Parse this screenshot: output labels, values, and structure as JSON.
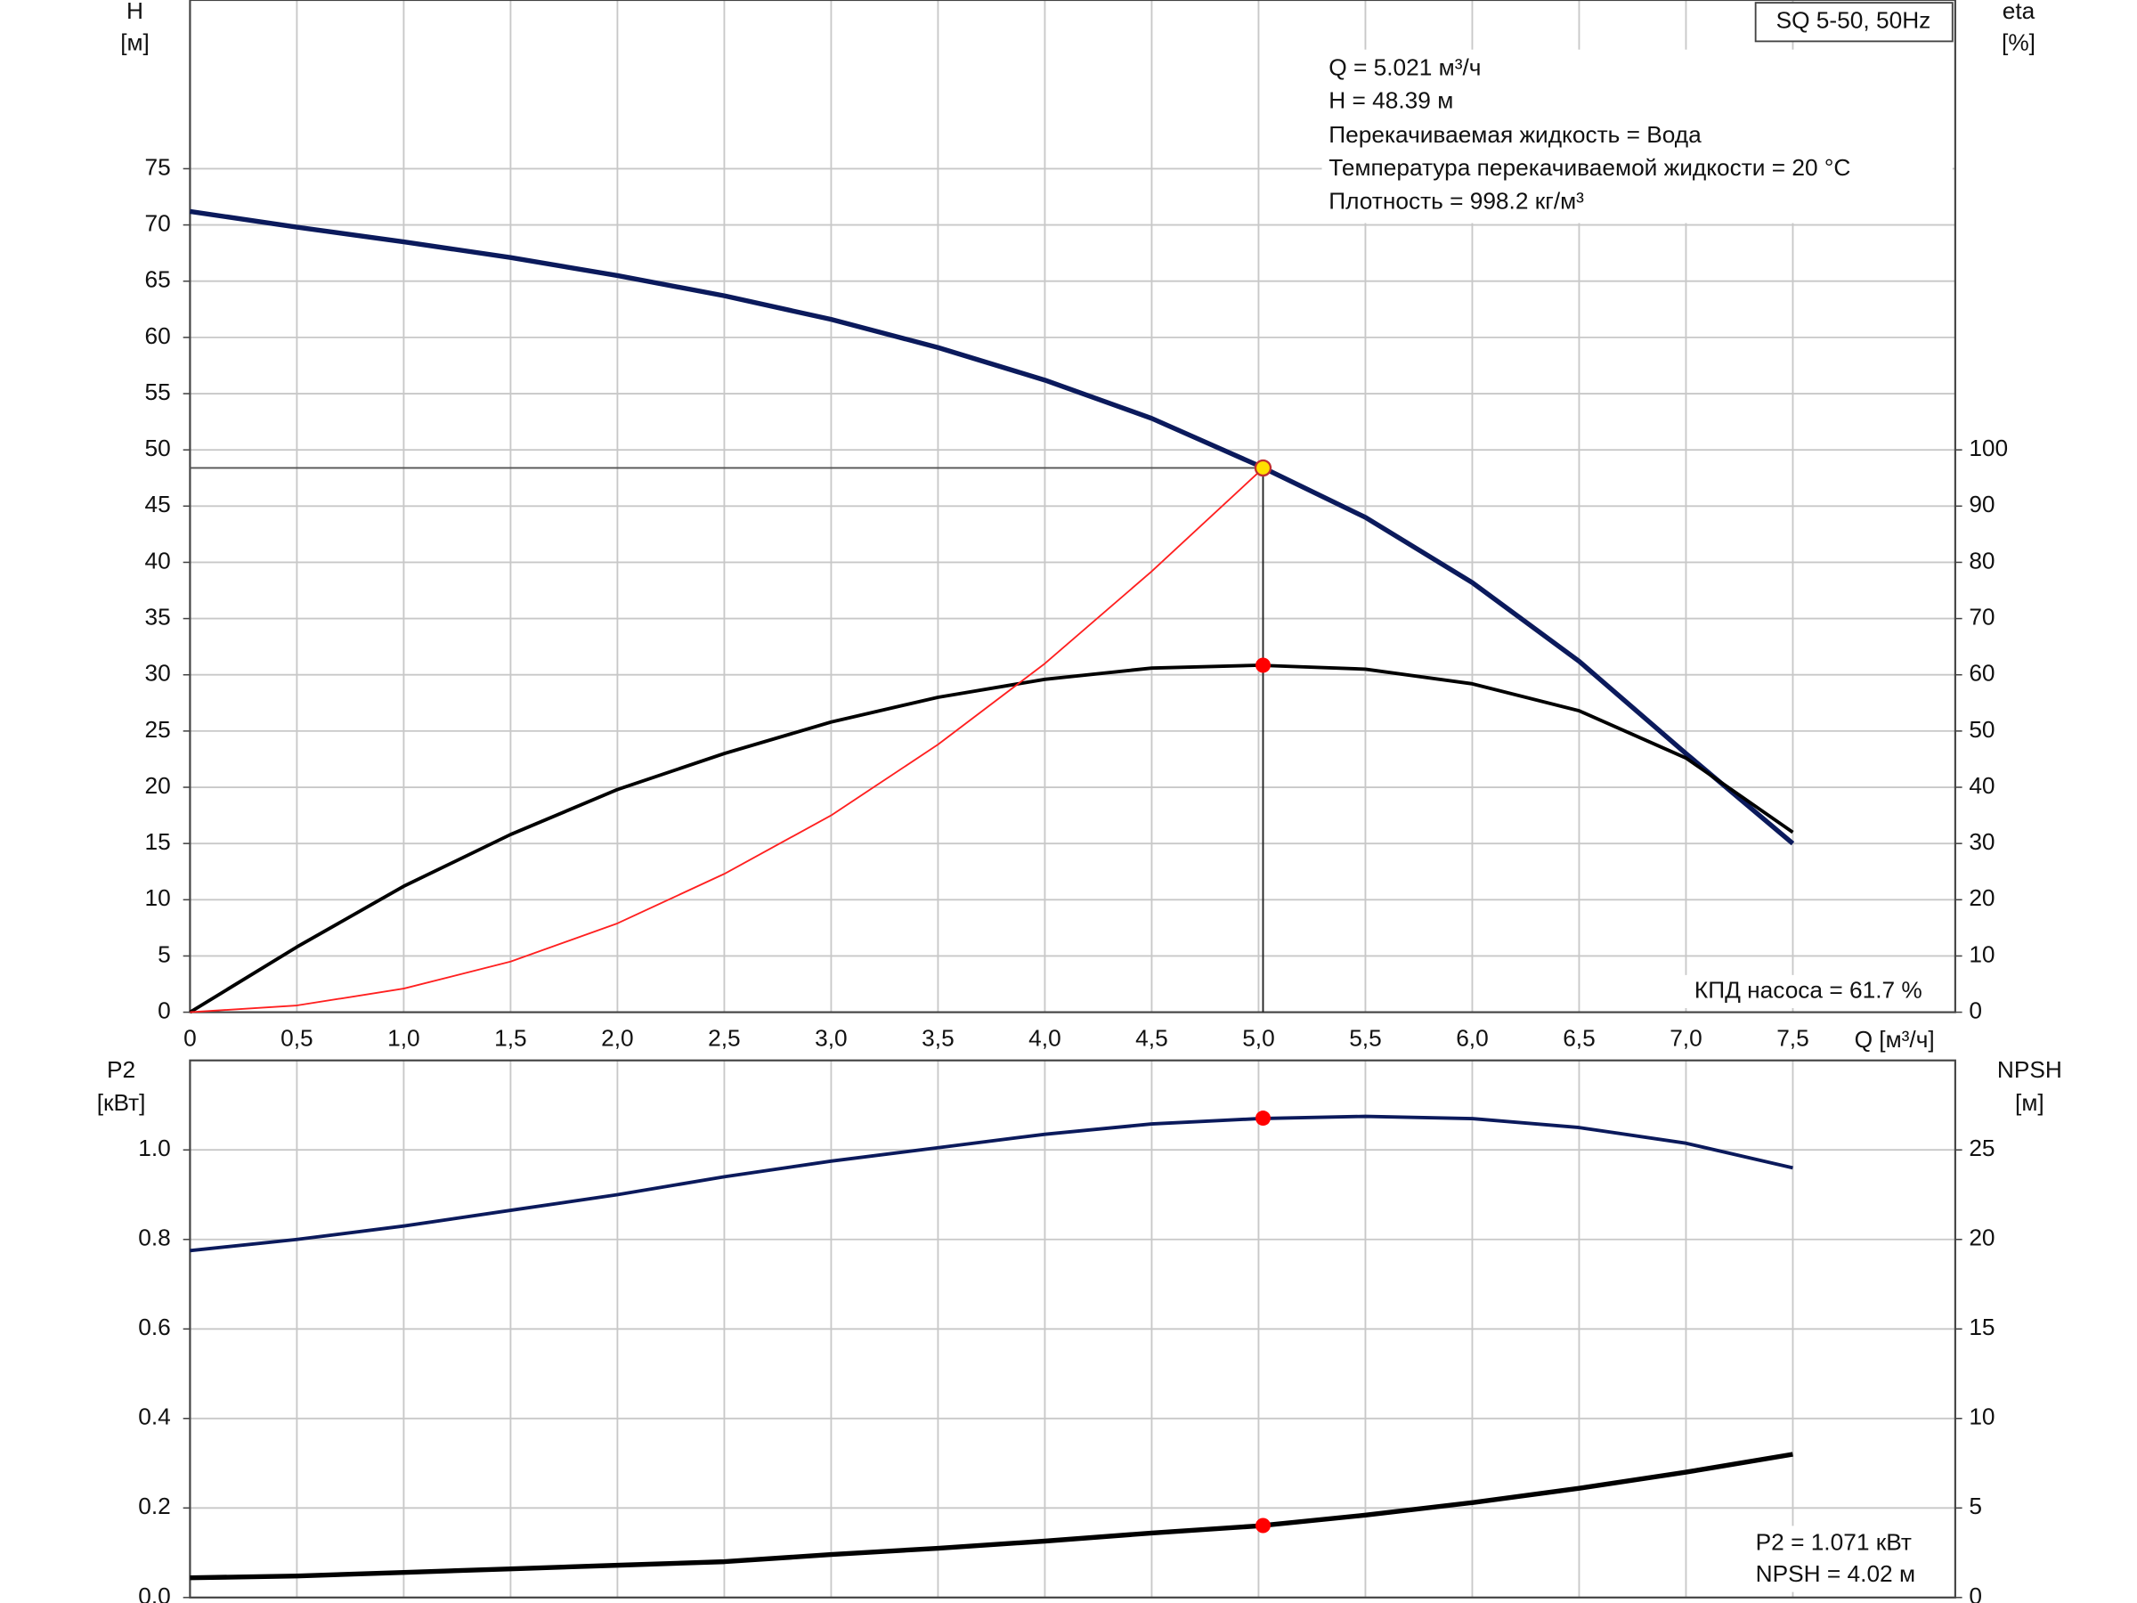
{
  "chart_data": [
    {
      "type": "line",
      "model": "SQ 5-50, 50Hz",
      "annotations": [
        "Q = 5.021 м³/ч",
        "H = 48.39 м",
        "Перекачиваемая жидкость = Вода",
        "Температура перекачиваемой жидкости = 20 °C",
        "Плотность = 998.2 кг/м³"
      ],
      "efficiency_label": "КПД насоса = 61.7 %",
      "ylabel": [
        "H",
        "[м]"
      ],
      "y2label": [
        "eta",
        "[%]"
      ],
      "xlabel": "Q [м³/ч]",
      "x": [
        0,
        0.5,
        1.0,
        1.5,
        2.0,
        2.5,
        3.0,
        3.5,
        4.0,
        4.5,
        5.0,
        5.5,
        6.0,
        6.5,
        7.0,
        7.5
      ],
      "xlim": [
        0,
        8.26
      ],
      "xticks": [
        0,
        {
          "value": 0.5,
          "label": "0,5"
        },
        {
          "value": 1.0,
          "label": "1,0"
        },
        {
          "value": 1.5,
          "label": "1,5"
        },
        {
          "value": 2.0,
          "label": "2,0"
        },
        {
          "value": 2.5,
          "label": "2,5"
        },
        {
          "value": 3.0,
          "label": "3,0"
        },
        {
          "value": 3.5,
          "label": "3,5"
        },
        {
          "value": 4.0,
          "label": "4,0"
        },
        {
          "value": 4.5,
          "label": "4,5"
        },
        {
          "value": 5.0,
          "label": "5,0"
        },
        {
          "value": 5.5,
          "label": "5,5"
        },
        {
          "value": 6.0,
          "label": "6,0"
        },
        {
          "value": 6.5,
          "label": "6,5"
        },
        {
          "value": 7.0,
          "label": "7,0"
        },
        {
          "value": 7.5,
          "label": "7,5"
        }
      ],
      "ylim": [
        0,
        90
      ],
      "yticks": [
        0,
        5,
        10,
        15,
        20,
        25,
        30,
        35,
        40,
        45,
        50,
        55,
        60,
        65,
        70,
        75
      ],
      "y2lim": [
        0,
        180
      ],
      "y2ticks": [
        0,
        10,
        20,
        30,
        40,
        50,
        60,
        70,
        80,
        90,
        100
      ],
      "grid": true,
      "guides": true,
      "series": [
        {
          "color": "#0b1a5c",
          "width": 3.5,
          "values": [
            71.2,
            69.8,
            68.5,
            67.1,
            65.5,
            63.7,
            61.6,
            59.1,
            56.2,
            52.8,
            48.6,
            44.0,
            38.2,
            31.2,
            23.0,
            15.0
          ]
        },
        {
          "color": "#000000",
          "width": 2.5,
          "axis": "y2",
          "values": [
            0,
            11.6,
            22.4,
            31.6,
            39.6,
            46,
            51.6,
            56,
            59.2,
            61.2,
            61.7,
            61,
            58.4,
            53.6,
            45.2,
            32
          ]
        },
        {
          "color": "#ff2020",
          "width": 1.2,
          "values": [
            0,
            0.6,
            2.1,
            4.5,
            7.9,
            12.3,
            17.5,
            23.8,
            31,
            39.2,
            48.0,
            null,
            null,
            null,
            null,
            null
          ]
        }
      ],
      "points": [
        {
          "x": 5.021,
          "y": 48.39,
          "color": "#ffe000"
        },
        {
          "x": 5.021,
          "y": 61.7,
          "axis": "y2",
          "color": "#ff0000"
        }
      ]
    },
    {
      "type": "line",
      "annotations": [
        "P2 = 1.071 кВт",
        "NPSH = 4.02 м"
      ],
      "ylabel": [
        "P2",
        "[кВт]"
      ],
      "y2label": [
        "NPSH",
        "[м]"
      ],
      "x": [
        0,
        0.5,
        1.0,
        1.5,
        2.0,
        2.5,
        3.0,
        3.5,
        4.0,
        4.5,
        5.0,
        5.5,
        6.0,
        6.5,
        7.0,
        7.5
      ],
      "xlim": [
        0,
        8.26
      ],
      "ylim": [
        0,
        1.2
      ],
      "yticks": [
        {
          "value": 0,
          "label": "0.0"
        },
        0.2,
        0.4,
        0.6,
        0.8,
        {
          "value": 1,
          "label": "1.0"
        }
      ],
      "y2lim": [
        0,
        30
      ],
      "y2ticks": [
        0,
        5,
        10,
        15,
        20,
        25
      ],
      "grid": true,
      "series": [
        {
          "color": "#0b1a5c",
          "width": 2.5,
          "values": [
            0.775,
            0.8,
            0.83,
            0.865,
            0.9,
            0.94,
            0.975,
            1.005,
            1.035,
            1.058,
            1.07,
            1.075,
            1.07,
            1.05,
            1.015,
            0.96
          ]
        },
        {
          "color": "#000000",
          "width": 3.5,
          "axis": "y2",
          "values": [
            1.1,
            1.2,
            1.4,
            1.6,
            1.8,
            2.0,
            2.4,
            2.75,
            3.15,
            3.6,
            4.0,
            4.6,
            5.3,
            6.1,
            7.0,
            8.0
          ]
        }
      ],
      "points": [
        {
          "x": 5.021,
          "y": 1.071,
          "color": "#ff0000"
        },
        {
          "x": 5.021,
          "y": 4.02,
          "axis": "y2",
          "color": "#ff0000"
        }
      ]
    }
  ]
}
